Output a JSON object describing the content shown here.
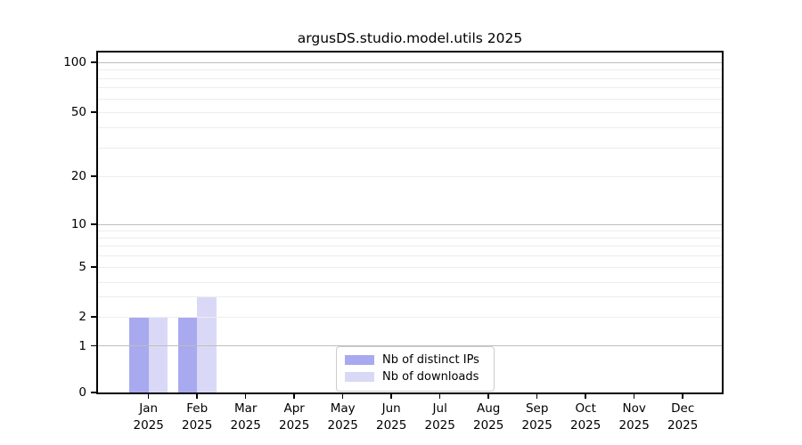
{
  "chart_data": {
    "type": "bar",
    "title": "argusDS.studio.model.utils 2025",
    "categories": [
      "Jan",
      "Feb",
      "Mar",
      "Apr",
      "May",
      "Jun",
      "Jul",
      "Aug",
      "Sep",
      "Oct",
      "Nov",
      "Dec"
    ],
    "category_year": "2025",
    "series": [
      {
        "name": "Nb of distinct IPs",
        "color": "#a9a9f0",
        "values": [
          2,
          2,
          0,
          0,
          0,
          0,
          0,
          0,
          0,
          0,
          0,
          0
        ]
      },
      {
        "name": "Nb of downloads",
        "color": "#d9d9f7",
        "values": [
          2,
          3,
          0,
          0,
          0,
          0,
          0,
          0,
          0,
          0,
          0,
          0
        ]
      }
    ],
    "yticks": [
      0,
      1,
      2,
      5,
      10,
      20,
      50,
      100
    ],
    "ylim": [
      0,
      100
    ],
    "yscale": "symlog",
    "grid": {
      "minor_values": [
        2,
        3,
        4,
        5,
        6,
        7,
        8,
        9,
        20,
        30,
        40,
        50,
        60,
        70,
        80,
        90
      ],
      "major_values": [
        1,
        10,
        100
      ],
      "orientation": "horizontal"
    },
    "legend": {
      "position": "inside-bottom-center",
      "entries": [
        "Nb of distinct IPs",
        "Nb of downloads"
      ]
    }
  }
}
